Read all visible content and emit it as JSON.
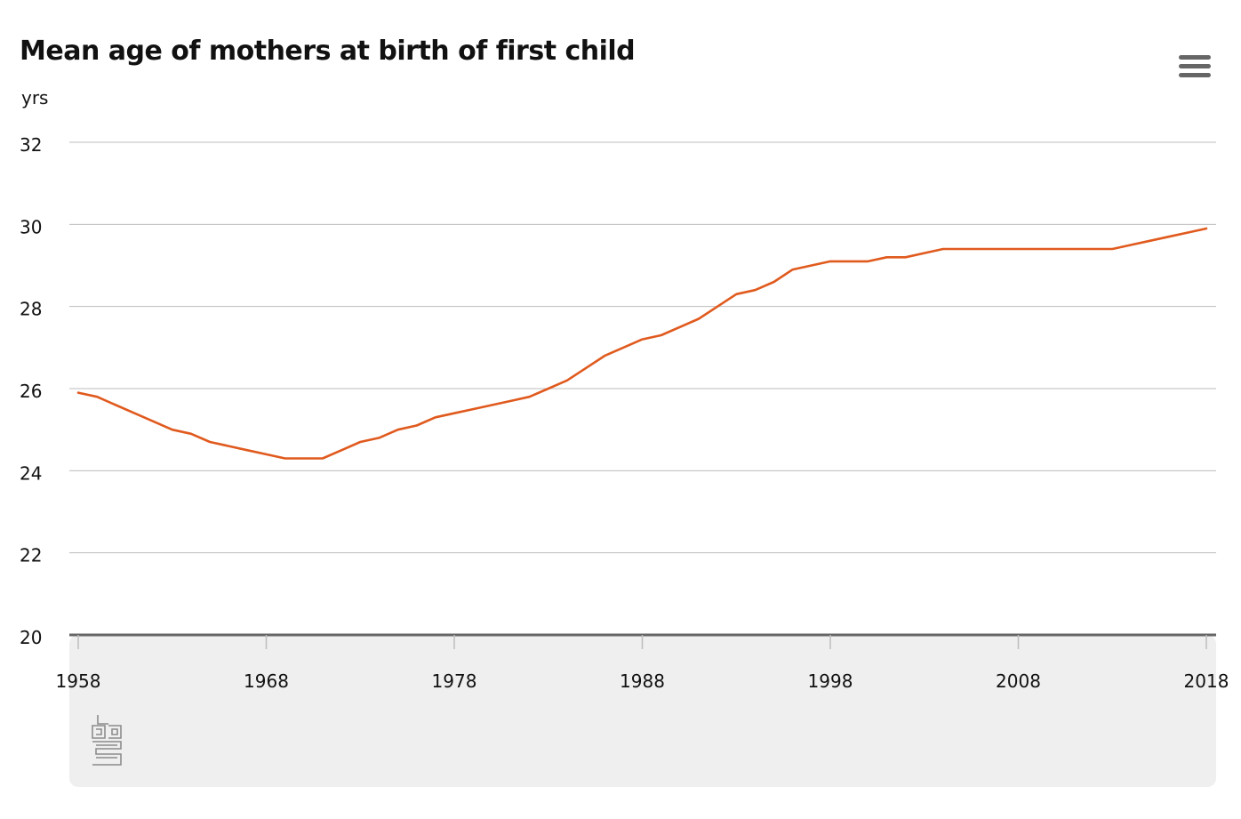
{
  "title": "Mean age of mothers at birth of first child",
  "unit": "yrs",
  "menu_icon": "hamburger-menu-icon",
  "logo_icon": "cbs-logo-icon",
  "colors": {
    "line": "#e05a1e",
    "grid": "#bdbdbd",
    "axis": "#666666",
    "footer_bg": "#efefef"
  },
  "chart_data": {
    "type": "line",
    "title": "Mean age of mothers at birth of first child",
    "ylabel": "yrs",
    "xlabel": "",
    "ylim": [
      20,
      32
    ],
    "yticks": [
      "20",
      "22",
      "24",
      "26",
      "28",
      "30",
      "32"
    ],
    "xticks": [
      "1958",
      "1968",
      "1978",
      "1988",
      "1998",
      "2008",
      "2018"
    ],
    "grid": true,
    "legend": "none",
    "series": [
      {
        "x": [
          1958,
          1959,
          1960,
          1961,
          1962,
          1963,
          1964,
          1965,
          1966,
          1967,
          1968,
          1969,
          1970,
          1971,
          1972,
          1973,
          1974,
          1975,
          1976,
          1977,
          1978,
          1979,
          1980,
          1981,
          1982,
          1983,
          1984,
          1985,
          1986,
          1987,
          1988,
          1989,
          1990,
          1991,
          1992,
          1993,
          1994,
          1995,
          1996,
          1997,
          1998,
          1999,
          2000,
          2001,
          2002,
          2003,
          2004,
          2005,
          2006,
          2007,
          2008,
          2009,
          2010,
          2011,
          2012,
          2013,
          2014,
          2015,
          2016,
          2017,
          2018
        ],
        "values": [
          25.9,
          25.8,
          25.6,
          25.4,
          25.2,
          25.0,
          24.9,
          24.7,
          24.6,
          24.5,
          24.4,
          24.3,
          24.3,
          24.3,
          24.5,
          24.7,
          24.8,
          25.0,
          25.1,
          25.3,
          25.4,
          25.5,
          25.6,
          25.7,
          25.8,
          26.0,
          26.2,
          26.5,
          26.8,
          27.0,
          27.2,
          27.3,
          27.5,
          27.7,
          28.0,
          28.3,
          28.4,
          28.6,
          28.9,
          29.0,
          29.1,
          29.1,
          29.1,
          29.2,
          29.2,
          29.3,
          29.4,
          29.4,
          29.4,
          29.4,
          29.4,
          29.4,
          29.4,
          29.4,
          29.4,
          29.4,
          29.5,
          29.6,
          29.7,
          29.8,
          29.9
        ]
      }
    ]
  }
}
